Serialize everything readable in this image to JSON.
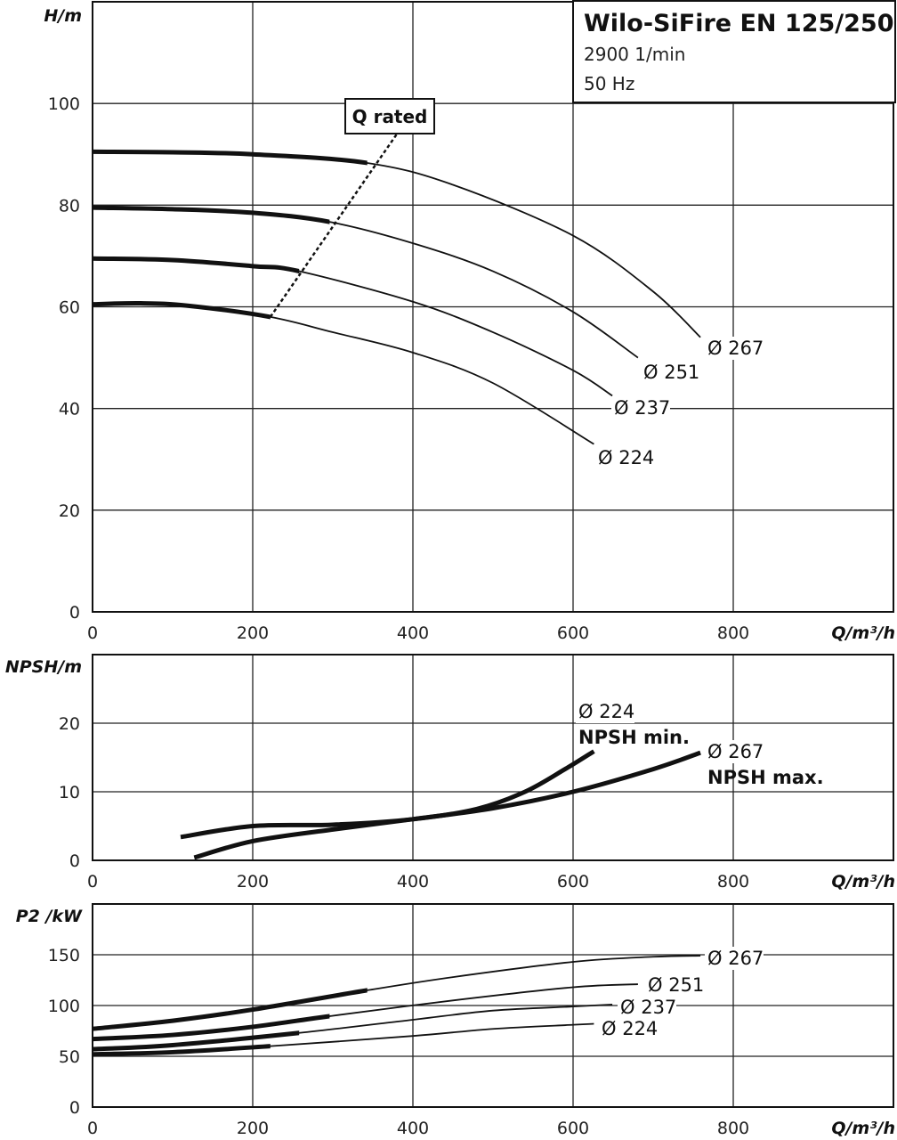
{
  "chart_data": [
    {
      "type": "line",
      "title": "Wilo-SiFire EN 125/250",
      "subtitle": [
        "2900 1/min",
        "50 Hz"
      ],
      "ylabel": "H/m",
      "xlabel": "Q/m³/h",
      "xlim": [
        0,
        1000
      ],
      "ylim": [
        0,
        120
      ],
      "xticks": [
        0,
        200,
        400,
        600,
        800
      ],
      "yticks": [
        0,
        20,
        40,
        60,
        80,
        100
      ],
      "grid": true,
      "annotation": "Q rated",
      "rated_line": [
        [
          222,
          58
        ],
        [
          380,
          94
        ]
      ],
      "series": [
        {
          "name": "Ø 267",
          "rated_q": 343,
          "points": [
            [
              0,
              90.5
            ],
            [
              100,
              90.4
            ],
            [
              200,
              90
            ],
            [
              343,
              88.3
            ],
            [
              450,
              84
            ],
            [
              600,
              74
            ],
            [
              700,
              63
            ],
            [
              759,
              54
            ]
          ]
        },
        {
          "name": "Ø 251",
          "rated_q": 296,
          "points": [
            [
              0,
              79.5
            ],
            [
              100,
              79.2
            ],
            [
              200,
              78.5
            ],
            [
              296,
              76.7
            ],
            [
              400,
              72.5
            ],
            [
              500,
              67
            ],
            [
              600,
              59
            ],
            [
              681,
              50
            ]
          ]
        },
        {
          "name": "Ø 237",
          "rated_q": 258,
          "points": [
            [
              0,
              69.5
            ],
            [
              100,
              69.2
            ],
            [
              200,
              68
            ],
            [
              258,
              67
            ],
            [
              400,
              61
            ],
            [
              500,
              55
            ],
            [
              600,
              47.5
            ],
            [
              649,
              42.5
            ]
          ]
        },
        {
          "name": "Ø 224",
          "rated_q": 222,
          "points": [
            [
              0,
              60.5
            ],
            [
              60,
              60.7
            ],
            [
              120,
              60.2
            ],
            [
              222,
              58
            ],
            [
              300,
              55
            ],
            [
              400,
              51
            ],
            [
              500,
              45
            ],
            [
              626,
              33
            ]
          ]
        }
      ]
    },
    {
      "type": "line",
      "ylabel": "NPSH/m",
      "xlabel": "Q/m³/h",
      "xlim": [
        0,
        1000
      ],
      "ylim": [
        0,
        30
      ],
      "xticks": [
        0,
        200,
        400,
        600,
        800
      ],
      "yticks": [
        0,
        10,
        20
      ],
      "grid": true,
      "series": [
        {
          "name": "Ø 224",
          "label": "NPSH min.",
          "points": [
            [
              110,
              3.4
            ],
            [
              200,
              5
            ],
            [
              300,
              5.2
            ],
            [
              400,
              6
            ],
            [
              480,
              7.5
            ],
            [
              540,
              10
            ],
            [
              590,
              13.3
            ],
            [
              626,
              15.9
            ]
          ]
        },
        {
          "name": "Ø 267",
          "label": "NPSH max.",
          "points": [
            [
              127,
              0.4
            ],
            [
              200,
              2.8
            ],
            [
              300,
              4.5
            ],
            [
              400,
              6
            ],
            [
              500,
              7.6
            ],
            [
              600,
              10
            ],
            [
              700,
              13.3
            ],
            [
              759,
              15.7
            ]
          ]
        }
      ]
    },
    {
      "type": "line",
      "ylabel": "P2 /kW",
      "xlabel": "Q/m³/h",
      "xlim": [
        0,
        1000
      ],
      "ylim": [
        0,
        200
      ],
      "xticks": [
        0,
        200,
        400,
        600,
        800
      ],
      "yticks": [
        0,
        50,
        100,
        150
      ],
      "grid": true,
      "series": [
        {
          "name": "Ø 267",
          "rated_q": 343,
          "points": [
            [
              0,
              77
            ],
            [
              100,
              85
            ],
            [
              200,
              96
            ],
            [
              343,
              115
            ],
            [
              450,
              128
            ],
            [
              600,
              143
            ],
            [
              700,
              148
            ],
            [
              759,
              149
            ]
          ]
        },
        {
          "name": "Ø 251",
          "rated_q": 296,
          "points": [
            [
              0,
              67
            ],
            [
              100,
              71
            ],
            [
              200,
              79
            ],
            [
              296,
              89.5
            ],
            [
              450,
              105
            ],
            [
              600,
              118
            ],
            [
              681,
              121
            ]
          ]
        },
        {
          "name": "Ø 237",
          "rated_q": 258,
          "points": [
            [
              0,
              57
            ],
            [
              100,
              61
            ],
            [
              258,
              73
            ],
            [
              400,
              86
            ],
            [
              500,
              95
            ],
            [
              600,
              99
            ],
            [
              649,
              101
            ]
          ]
        },
        {
          "name": "Ø 224",
          "rated_q": 222,
          "points": [
            [
              0,
              52
            ],
            [
              100,
              54
            ],
            [
              222,
              60
            ],
            [
              400,
              70
            ],
            [
              500,
              77
            ],
            [
              600,
              81
            ],
            [
              626,
              82
            ]
          ]
        }
      ]
    }
  ]
}
